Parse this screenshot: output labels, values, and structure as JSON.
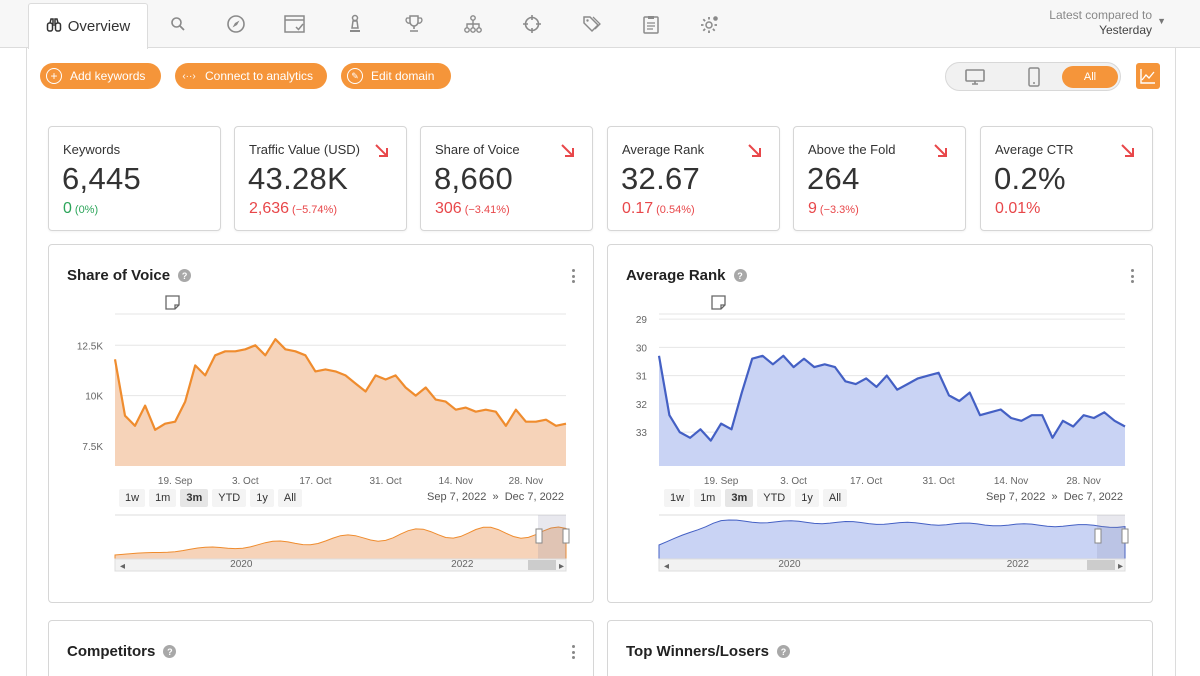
{
  "tabs": {
    "overview_label": "Overview",
    "icons": [
      "search-icon",
      "compass-icon",
      "browser-check-icon",
      "chess-pawn-icon",
      "trophy-icon",
      "sitemap-icon",
      "crosshair-icon",
      "tags-icon",
      "clipboard-icon",
      "gear-badge-icon"
    ]
  },
  "compare": {
    "label": "Latest compared to",
    "value": "Yesterday"
  },
  "actions": {
    "add_keywords": "Add keywords",
    "connect_analytics": "Connect to analytics",
    "edit_domain": "Edit domain"
  },
  "device_toggle": {
    "all": "All",
    "selected": "All"
  },
  "kpis": [
    {
      "label": "Keywords",
      "value": "6,445",
      "delta": "0",
      "delta_pct": "(0%)",
      "trend": "neutral"
    },
    {
      "label": "Traffic Value (USD)",
      "value": "43.28K",
      "delta": "2,636",
      "delta_pct": "(−5.74%)",
      "trend": "down"
    },
    {
      "label": "Share of Voice",
      "value": "8,660",
      "delta": "306",
      "delta_pct": "(−3.41%)",
      "trend": "down"
    },
    {
      "label": "Average Rank",
      "value": "32.67",
      "delta": "0.17",
      "delta_pct": "(0.54%)",
      "trend": "down"
    },
    {
      "label": "Above the Fold",
      "value": "264",
      "delta": "9",
      "delta_pct": "(−3.3%)",
      "trend": "down"
    },
    {
      "label": "Average CTR",
      "value": "0.2%",
      "delta": "0.01%",
      "delta_pct": "",
      "trend": "down"
    }
  ],
  "colors": {
    "accent": "#f5953a",
    "sov_line": "#ef8c2e",
    "sov_fill": "#f6d3b9",
    "rank_line": "#4460c4",
    "rank_fill": "#c9d3f4",
    "down": "#e8474a",
    "up": "#2ca55a"
  },
  "range_buttons": [
    "1w",
    "1m",
    "3m",
    "YTD",
    "1y",
    "All"
  ],
  "range_selected": "3m",
  "panels": {
    "sov": {
      "title": "Share of Voice",
      "date_from": "Sep 7, 2022",
      "date_sep": "»",
      "date_to": "Dec 7, 2022"
    },
    "rank": {
      "title": "Average Rank",
      "date_from": "Sep 7, 2022",
      "date_sep": "»",
      "date_to": "Dec 7, 2022"
    },
    "competitors": {
      "title": "Competitors"
    },
    "winners": {
      "title": "Top Winners/Losers"
    }
  },
  "chart_data": [
    {
      "type": "area",
      "title": "Share of Voice",
      "x_tick_labels": [
        "19. Sep",
        "3. Oct",
        "17. Oct",
        "31. Oct",
        "14. Nov",
        "28. Nov"
      ],
      "y_tick_labels": [
        "12.5K",
        "10K",
        "7.5K"
      ],
      "ylim": [
        6500,
        14500
      ],
      "x": [
        "2022-09-07",
        "2022-09-09",
        "2022-09-11",
        "2022-09-13",
        "2022-09-15",
        "2022-09-17",
        "2022-09-19",
        "2022-09-21",
        "2022-09-23",
        "2022-09-25",
        "2022-09-27",
        "2022-09-29",
        "2022-10-01",
        "2022-10-03",
        "2022-10-05",
        "2022-10-07",
        "2022-10-09",
        "2022-10-11",
        "2022-10-13",
        "2022-10-15",
        "2022-10-17",
        "2022-10-19",
        "2022-10-21",
        "2022-10-23",
        "2022-10-25",
        "2022-10-27",
        "2022-10-29",
        "2022-10-31",
        "2022-11-02",
        "2022-11-04",
        "2022-11-06",
        "2022-11-08",
        "2022-11-10",
        "2022-11-12",
        "2022-11-14",
        "2022-11-16",
        "2022-11-18",
        "2022-11-20",
        "2022-11-22",
        "2022-11-24",
        "2022-11-26",
        "2022-11-28",
        "2022-11-30",
        "2022-12-02",
        "2022-12-04",
        "2022-12-07"
      ],
      "values": [
        11800,
        9000,
        8500,
        9500,
        8300,
        8600,
        8700,
        9700,
        11500,
        11000,
        12000,
        12200,
        12200,
        12300,
        12500,
        12000,
        12800,
        12300,
        12200,
        12000,
        11200,
        11300,
        11200,
        11000,
        10600,
        10200,
        11000,
        10800,
        11000,
        10400,
        10000,
        10400,
        9800,
        9700,
        9300,
        9400,
        9200,
        9300,
        9200,
        8500,
        9300,
        8700,
        8700,
        8800,
        8500,
        8600
      ],
      "navigator_x_labels": [
        "2020",
        "2022"
      ]
    },
    {
      "type": "area",
      "title": "Average Rank",
      "x_tick_labels": [
        "19. Sep",
        "3. Oct",
        "17. Oct",
        "31. Oct",
        "14. Nov",
        "28. Nov"
      ],
      "y_tick_labels": [
        "29",
        "30",
        "31",
        "32",
        "33"
      ],
      "ylim": [
        28.5,
        34.2
      ],
      "y_reversed": true,
      "x": [
        "2022-09-07",
        "2022-09-09",
        "2022-09-11",
        "2022-09-13",
        "2022-09-15",
        "2022-09-17",
        "2022-09-19",
        "2022-09-21",
        "2022-09-23",
        "2022-09-25",
        "2022-09-27",
        "2022-09-29",
        "2022-10-01",
        "2022-10-03",
        "2022-10-05",
        "2022-10-07",
        "2022-10-09",
        "2022-10-11",
        "2022-10-13",
        "2022-10-15",
        "2022-10-17",
        "2022-10-19",
        "2022-10-21",
        "2022-10-23",
        "2022-10-25",
        "2022-10-27",
        "2022-10-29",
        "2022-10-31",
        "2022-11-02",
        "2022-11-04",
        "2022-11-06",
        "2022-11-08",
        "2022-11-10",
        "2022-11-12",
        "2022-11-14",
        "2022-11-16",
        "2022-11-18",
        "2022-11-20",
        "2022-11-22",
        "2022-11-24",
        "2022-11-26",
        "2022-11-28",
        "2022-11-30",
        "2022-12-02",
        "2022-12-04",
        "2022-12-07"
      ],
      "values": [
        30.3,
        32.4,
        33.0,
        33.2,
        32.9,
        33.3,
        32.7,
        32.9,
        31.6,
        30.4,
        30.3,
        30.6,
        30.3,
        30.7,
        30.4,
        30.7,
        30.6,
        30.7,
        31.2,
        31.3,
        31.1,
        31.4,
        31.0,
        31.5,
        31.3,
        31.1,
        31.0,
        30.9,
        31.7,
        31.9,
        31.6,
        32.4,
        32.3,
        32.2,
        32.5,
        32.6,
        32.4,
        32.4,
        33.2,
        32.6,
        32.8,
        32.4,
        32.5,
        32.3,
        32.6,
        32.8
      ],
      "navigator_x_labels": [
        "2020",
        "2022"
      ]
    }
  ]
}
